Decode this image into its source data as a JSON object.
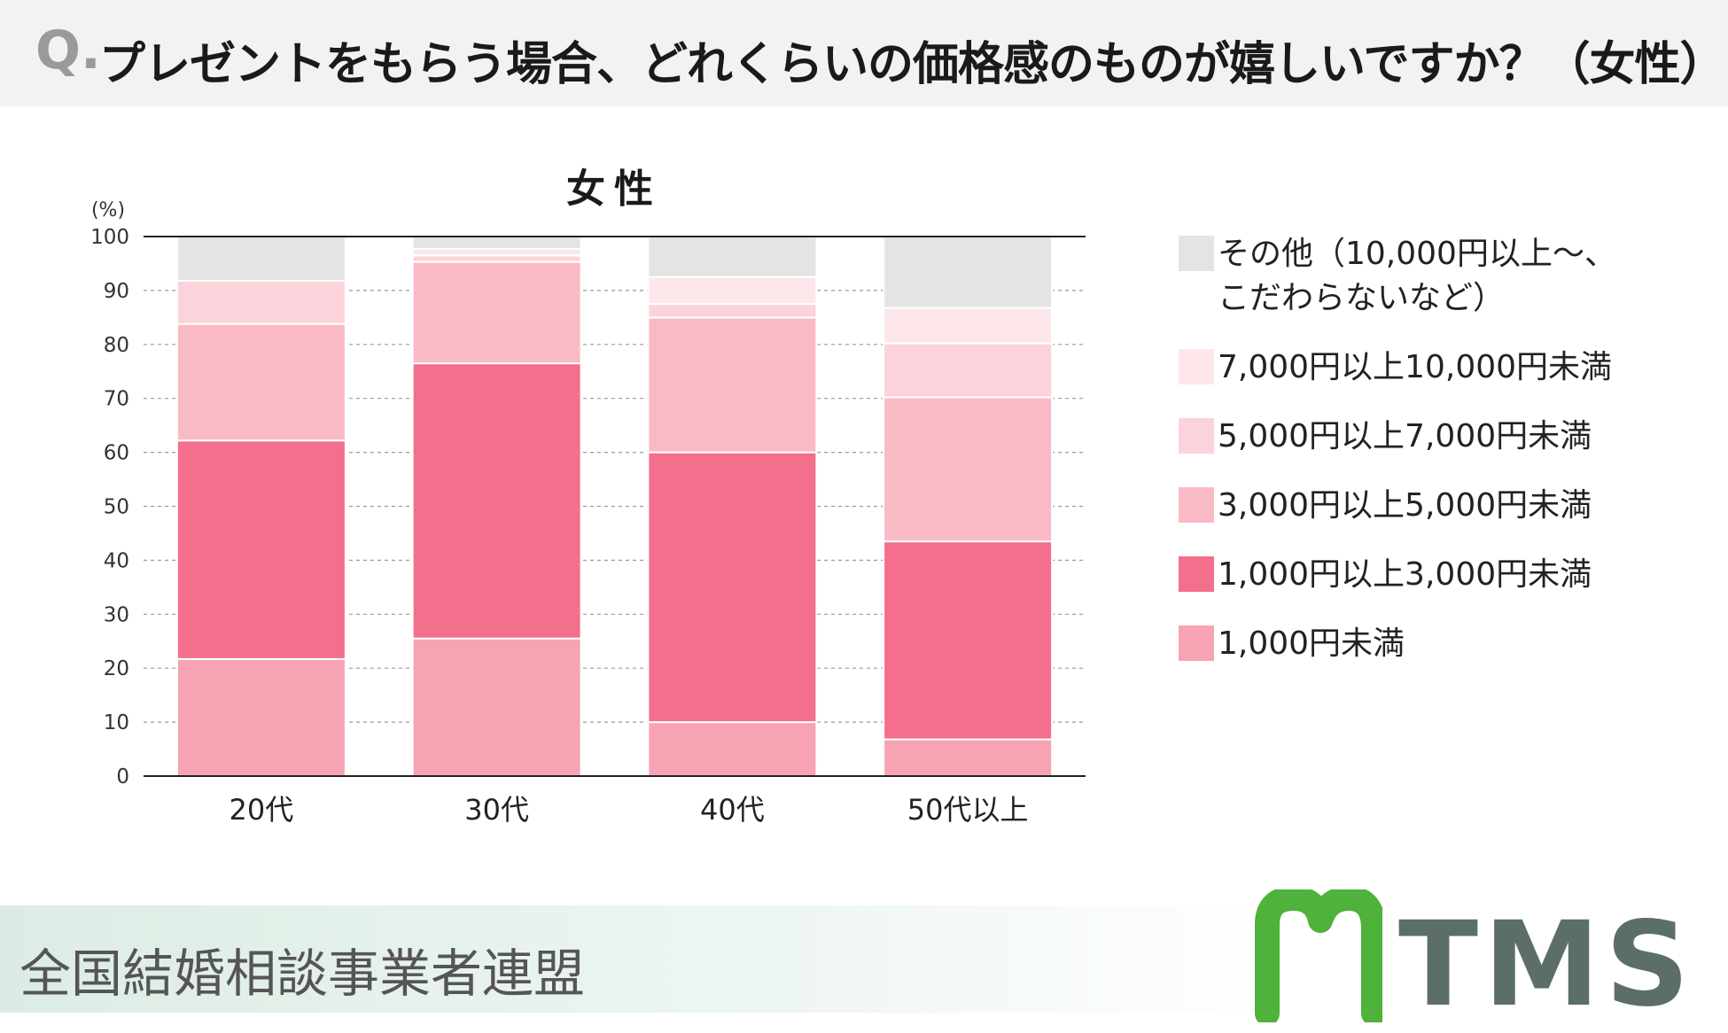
{
  "header": {
    "q_mark": "Q.",
    "question": "プレゼントをもらう場合、どれくらいの価格感のものが嬉しいですか？（女性）"
  },
  "chart_data": {
    "type": "bar",
    "stacked": true,
    "title": "女性",
    "ylabel": "(%)",
    "ylim": [
      0,
      100
    ],
    "yticks": [
      "0",
      "10",
      "20",
      "30",
      "40",
      "50",
      "60",
      "70",
      "80",
      "90",
      "100"
    ],
    "grid": true,
    "legend_position": "right",
    "categories": [
      "20代",
      "30代",
      "40代",
      "50代以上"
    ],
    "series": [
      {
        "name": "1,000円未満",
        "color": "#f7a3b3",
        "values": [
          21.7,
          25.5,
          10.0,
          6.8
        ]
      },
      {
        "name": "1,000円以上3,000円未満",
        "color": "#f36f8b",
        "values": [
          40.5,
          51.0,
          50.0,
          36.7
        ]
      },
      {
        "name": "3,000円以上5,000円未満",
        "color": "#fabac5",
        "values": [
          21.6,
          18.8,
          25.0,
          26.7
        ]
      },
      {
        "name": "5,000円以上7,000円未満",
        "color": "#fcd3da",
        "values": [
          8.0,
          1.2,
          2.5,
          10.0
        ]
      },
      {
        "name": "7,000円以上10,000円未満",
        "color": "#fde7eb",
        "values": [
          0.0,
          1.2,
          5.0,
          6.6
        ]
      },
      {
        "name": "その他（10,000円以上〜、\nこだわらないなど）",
        "color": "#e4e4e4",
        "values": [
          8.2,
          2.3,
          7.5,
          13.2
        ]
      }
    ]
  },
  "footer": {
    "org_name": "全国結婚相談事業者連盟",
    "logo_text": "TMS",
    "logo_color": "#4fb23a"
  }
}
